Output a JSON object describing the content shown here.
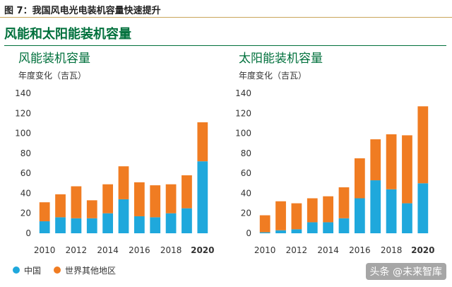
{
  "figure": {
    "title": "图 7：我国风电光电装机容量快速提升",
    "panel_title": "风能和太阳能装机容量"
  },
  "colors": {
    "china": "#1fa8dc",
    "rest_of_world": "#f07c22",
    "accent_green": "#00703c",
    "axis_text": "#333333"
  },
  "legend": {
    "china": "中国",
    "rest_of_world": "世界其他地区"
  },
  "watermark": "头条 @未来智库",
  "chart_data": [
    {
      "type": "bar",
      "stacked": true,
      "title": "风能装机容量",
      "ylabel": "年度变化（吉瓦）",
      "xlabel": "",
      "ylim": [
        0,
        140
      ],
      "yticks": [
        0,
        20,
        40,
        60,
        80,
        100,
        120,
        140
      ],
      "categories": [
        "2010",
        "2011",
        "2012",
        "2013",
        "2014",
        "2015",
        "2016",
        "2017",
        "2018",
        "2019",
        "2020"
      ],
      "xtick_labels": [
        "2010",
        "",
        "2012",
        "",
        "2014",
        "",
        "2016",
        "",
        "2018",
        "",
        "2020"
      ],
      "series": [
        {
          "name": "中国",
          "values": [
            12,
            16,
            15,
            15,
            20,
            34,
            17,
            16,
            20,
            25,
            72
          ]
        },
        {
          "name": "世界其他地区",
          "values": [
            19,
            23,
            32,
            18,
            29,
            33,
            34,
            32,
            29,
            33,
            39
          ]
        }
      ],
      "grid": false
    },
    {
      "type": "bar",
      "stacked": true,
      "title": "太阳能装机容量",
      "ylabel": "年度变化（吉瓦）",
      "xlabel": "",
      "ylim": [
        0,
        140
      ],
      "yticks": [
        0,
        20,
        40,
        60,
        80,
        100,
        120,
        140
      ],
      "categories": [
        "2010",
        "2011",
        "2012",
        "2013",
        "2014",
        "2015",
        "2016",
        "2017",
        "2018",
        "2019",
        "2020"
      ],
      "xtick_labels": [
        "2010",
        "",
        "2012",
        "",
        "2014",
        "",
        "2016",
        "",
        "2018",
        "",
        "2020"
      ],
      "series": [
        {
          "name": "中国",
          "values": [
            1,
            3,
            4,
            11,
            11,
            15,
            35,
            53,
            44,
            30,
            50
          ]
        },
        {
          "name": "世界其他地区",
          "values": [
            17,
            29,
            26,
            24,
            26,
            31,
            40,
            41,
            55,
            68,
            77
          ]
        }
      ],
      "grid": false
    }
  ]
}
